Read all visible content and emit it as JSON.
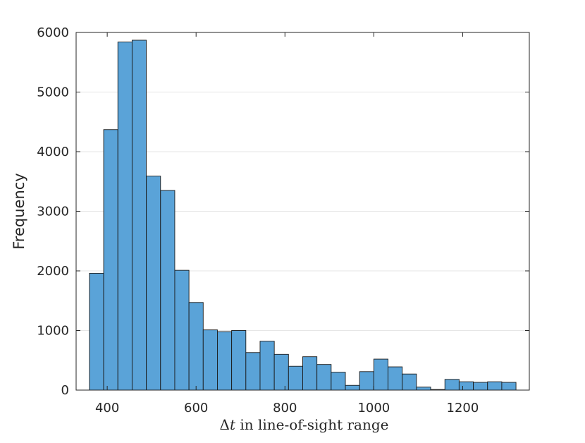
{
  "chart_data": {
    "type": "bar",
    "title": "",
    "xlabel_prefix": "Δ",
    "xlabel_var": "t",
    "xlabel_rest": " in line-of-sight range",
    "ylabel": "Frequency",
    "xlim": [
      330,
      1350
    ],
    "ylim": [
      0,
      6000
    ],
    "grid": true,
    "bar_color": "#5aa3d8",
    "edge_color": "#1a1a1a",
    "bin_width": 32,
    "bin_start": 360,
    "values": [
      1960,
      4370,
      5840,
      5870,
      3590,
      3350,
      2010,
      1470,
      1010,
      980,
      1000,
      630,
      820,
      600,
      400,
      560,
      430,
      300,
      80,
      310,
      520,
      390,
      270,
      50,
      10,
      180,
      140,
      130,
      140,
      130
    ],
    "x_ticks": [
      400,
      600,
      800,
      1000,
      1200
    ],
    "x_tick_labels": [
      "400",
      "600",
      "800",
      "1000",
      "1200"
    ],
    "y_ticks": [
      0,
      1000,
      2000,
      3000,
      4000,
      5000,
      6000
    ],
    "y_tick_labels": [
      "0",
      "1000",
      "2000",
      "3000",
      "4000",
      "5000",
      "6000"
    ]
  }
}
